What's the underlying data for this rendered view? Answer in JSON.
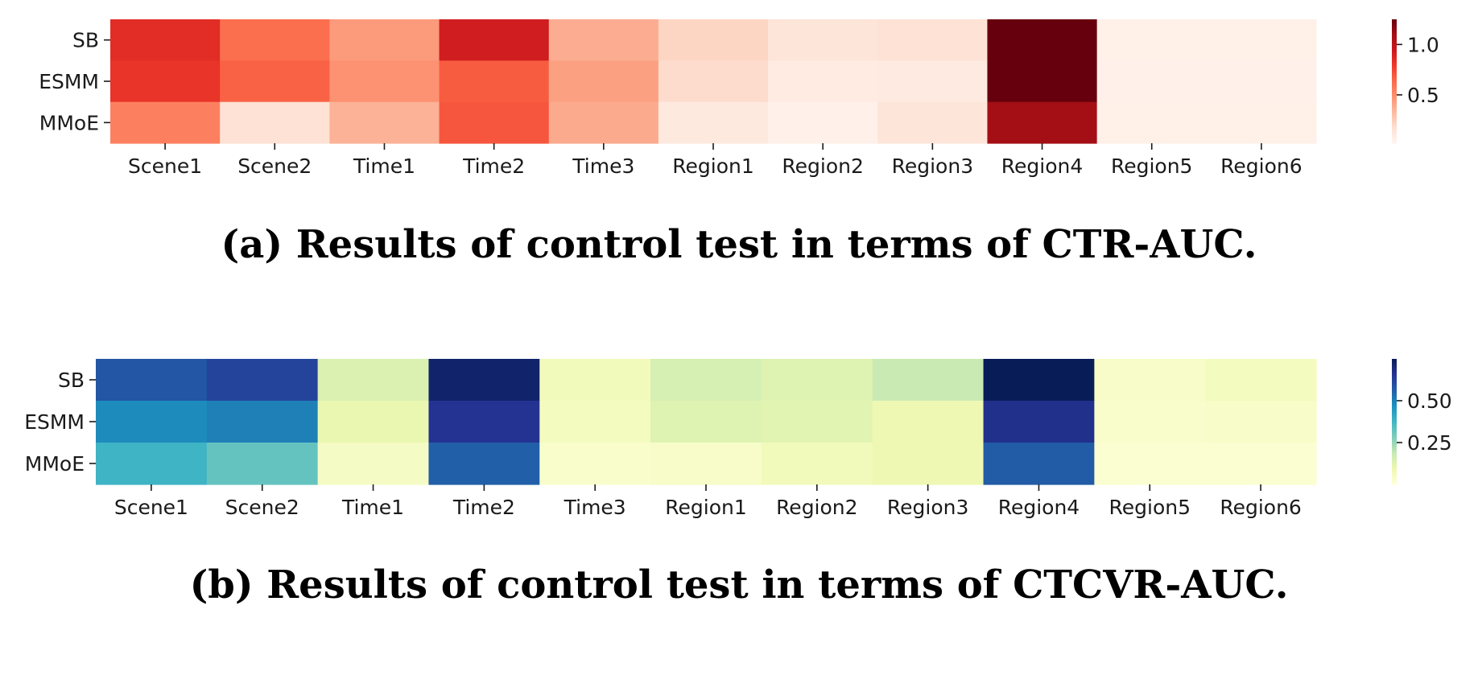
{
  "chart_data": [
    {
      "type": "heatmap",
      "caption": "(a) Results of control test in terms of CTR-AUC.",
      "colormap": "Reds",
      "rows": [
        "SB",
        "ESMM",
        "MMoE"
      ],
      "columns": [
        "Scene1",
        "Scene2",
        "Time1",
        "Time2",
        "Time3",
        "Region1",
        "Region2",
        "Region3",
        "Region4",
        "Region5",
        "Region6"
      ],
      "values": [
        [
          0.85,
          0.62,
          0.45,
          0.92,
          0.38,
          0.22,
          0.14,
          0.16,
          1.25,
          0.06,
          0.06
        ],
        [
          0.82,
          0.66,
          0.48,
          0.68,
          0.43,
          0.19,
          0.09,
          0.1,
          1.27,
          0.05,
          0.05
        ],
        [
          0.55,
          0.16,
          0.36,
          0.7,
          0.39,
          0.11,
          0.05,
          0.14,
          1.1,
          0.06,
          0.06
        ]
      ],
      "vmin": 0.02,
      "vmax": 1.25,
      "colorbar_ticks": [
        0.5,
        1.0
      ],
      "colorbar_tick_labels": [
        "0.5",
        "1.0"
      ]
    },
    {
      "type": "heatmap",
      "caption": "(b) Results of control test in terms of CTCVR-AUC.",
      "colormap": "YlGnBu",
      "rows": [
        "SB",
        "ESMM",
        "MMoE"
      ],
      "columns": [
        "Scene1",
        "Scene2",
        "Time1",
        "Time2",
        "Time3",
        "Region1",
        "Region2",
        "Region3",
        "Region4",
        "Region5",
        "Region6"
      ],
      "values": [
        [
          0.58,
          0.62,
          0.14,
          0.72,
          0.07,
          0.15,
          0.13,
          0.18,
          0.75,
          0.04,
          0.06
        ],
        [
          0.48,
          0.5,
          0.1,
          0.66,
          0.06,
          0.13,
          0.12,
          0.09,
          0.67,
          0.03,
          0.04
        ],
        [
          0.38,
          0.32,
          0.05,
          0.56,
          0.03,
          0.04,
          0.07,
          0.09,
          0.57,
          0.02,
          0.02
        ]
      ],
      "vmin": 0.0,
      "vmax": 0.75,
      "colorbar_ticks": [
        0.25,
        0.5
      ],
      "colorbar_tick_labels": [
        "0.25",
        "0.50"
      ]
    }
  ]
}
